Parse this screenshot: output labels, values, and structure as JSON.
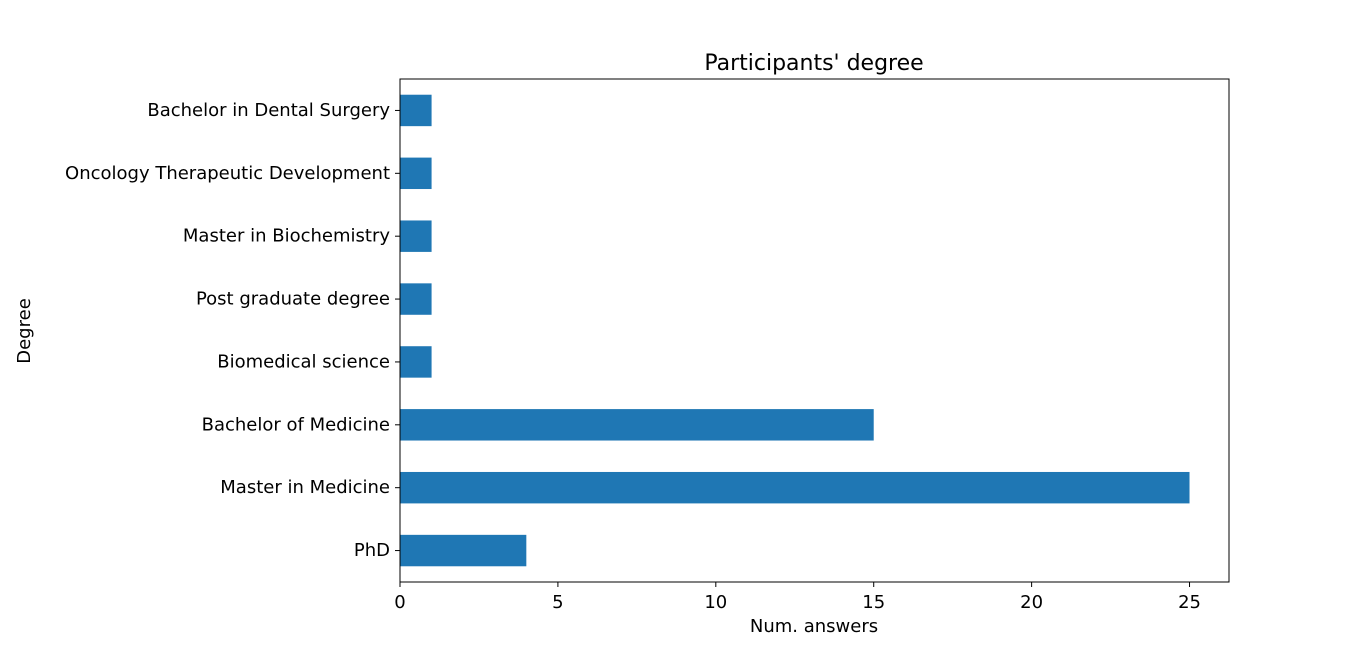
{
  "chart_data": {
    "type": "bar",
    "orientation": "horizontal",
    "title": "Participants' degree",
    "xlabel": "Num. answers",
    "ylabel": "Degree",
    "categories": [
      "PhD",
      "Master in Medicine",
      "Bachelor of Medicine",
      "Biomedical science",
      "Post graduate degree",
      "Master in Biochemistry",
      "Oncology Therapeutic Development",
      "Bachelor in Dental Surgery"
    ],
    "values": [
      4,
      25,
      15,
      1,
      1,
      1,
      1,
      1
    ],
    "xlim": [
      0,
      26.25
    ],
    "xticks": [
      0,
      5,
      10,
      15,
      20,
      25
    ],
    "grid": false,
    "legend": "none",
    "bar_color": "#1f77b4"
  }
}
